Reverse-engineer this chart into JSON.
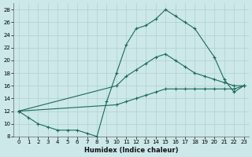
{
  "xlabel": "Humidex (Indice chaleur)",
  "bg_color": "#cce8e8",
  "line_color": "#1a6b5a",
  "grid_color": "#b0d0d0",
  "xlim": [
    -0.5,
    23.5
  ],
  "ylim": [
    8,
    29
  ],
  "xticks": [
    0,
    1,
    2,
    3,
    4,
    5,
    6,
    7,
    8,
    9,
    10,
    11,
    12,
    13,
    14,
    15,
    16,
    17,
    18,
    19,
    20,
    21,
    22,
    23
  ],
  "yticks": [
    8,
    10,
    12,
    14,
    16,
    18,
    20,
    22,
    24,
    26,
    28
  ],
  "x_top": [
    0,
    1,
    2,
    3,
    4,
    5,
    6,
    7,
    8,
    9,
    10,
    11,
    12,
    13,
    14,
    15,
    16,
    17,
    18,
    20,
    21,
    22,
    23
  ],
  "y_top": [
    12,
    11,
    10,
    9.5,
    9,
    9,
    9,
    8.5,
    8,
    13.5,
    18,
    22.5,
    25,
    25.5,
    26.5,
    28,
    27,
    26,
    25,
    20.5,
    17,
    15,
    16
  ],
  "x_mid": [
    0,
    10,
    11,
    12,
    13,
    14,
    15,
    16,
    17,
    18,
    19,
    20,
    21,
    22,
    23
  ],
  "y_mid": [
    12,
    16,
    17.5,
    18.5,
    19.5,
    20.5,
    21,
    20,
    19,
    18,
    17.5,
    17,
    16.5,
    16,
    16
  ],
  "x_bot": [
    0,
    10,
    11,
    12,
    13,
    14,
    15,
    16,
    17,
    18,
    19,
    20,
    21,
    22,
    23
  ],
  "y_bot": [
    12,
    13,
    13.5,
    14,
    14.5,
    15,
    15.5,
    15.5,
    15.5,
    15.5,
    15.5,
    15.5,
    15.5,
    15.5,
    16
  ]
}
